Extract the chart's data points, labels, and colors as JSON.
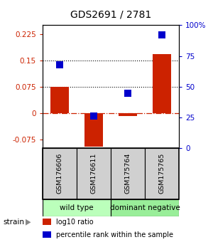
{
  "title": "GDS2691 / 2781",
  "samples": [
    "GSM176606",
    "GSM176611",
    "GSM175764",
    "GSM175765"
  ],
  "log10_ratio": [
    0.075,
    -0.095,
    -0.008,
    0.168
  ],
  "percentile_rank": [
    68,
    26,
    45,
    92
  ],
  "bar_color": "#cc2200",
  "dot_color": "#0000cc",
  "left_ylim": [
    -0.1,
    0.25
  ],
  "right_ylim": [
    0,
    100
  ],
  "left_yticks": [
    -0.075,
    0.0,
    0.075,
    0.15,
    0.225
  ],
  "left_yticklabels": [
    "-0.075",
    "0",
    "0.075",
    "0.15",
    "0.225"
  ],
  "right_yticks": [
    0,
    25,
    50,
    75,
    100
  ],
  "right_yticklabels": [
    "0",
    "25",
    "50",
    "75",
    "100%"
  ],
  "dotted_lines": [
    0.075,
    0.15
  ],
  "groups": [
    {
      "label": "wild type",
      "samples": [
        0,
        1
      ],
      "color": "#bbffbb"
    },
    {
      "label": "dominant negative",
      "samples": [
        2,
        3
      ],
      "color": "#99ee99"
    }
  ],
  "strain_label": "strain",
  "legend_items": [
    {
      "color": "#cc2200",
      "label": "log10 ratio"
    },
    {
      "color": "#0000cc",
      "label": "percentile rank within the sample"
    }
  ],
  "bar_width": 0.55,
  "dot_size": 45,
  "background_color": "#ffffff",
  "plot_bg_color": "#ffffff",
  "left_label_color": "#cc2200",
  "right_label_color": "#0000cc",
  "sample_box_color": "#d0d0d0",
  "sample_box_edge": "#888888"
}
